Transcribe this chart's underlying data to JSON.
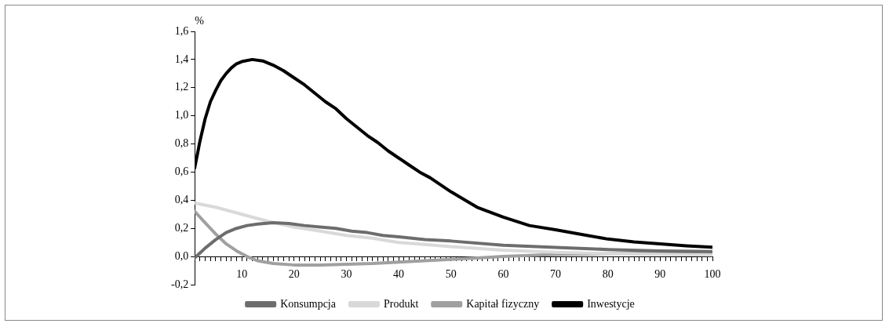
{
  "chart_data": {
    "type": "line",
    "ylabel": "%",
    "xlim": [
      1,
      100
    ],
    "xticks": [
      {
        "value": 1,
        "label": null
      },
      {
        "value": 2,
        "label": null
      },
      {
        "value": 3,
        "label": null
      },
      {
        "value": 4,
        "label": null
      },
      {
        "value": 5,
        "label": null
      },
      {
        "value": 6,
        "label": null
      },
      {
        "value": 7,
        "label": null
      },
      {
        "value": 8,
        "label": null
      },
      {
        "value": 9,
        "label": null
      },
      10,
      {
        "value": 11,
        "label": null
      },
      {
        "value": 12,
        "label": null
      },
      {
        "value": 13,
        "label": null
      },
      {
        "value": 14,
        "label": null
      },
      {
        "value": 15,
        "label": null
      },
      {
        "value": 16,
        "label": null
      },
      {
        "value": 17,
        "label": null
      },
      {
        "value": 18,
        "label": null
      },
      {
        "value": 19,
        "label": null
      },
      20,
      {
        "value": 21,
        "label": null
      },
      {
        "value": 22,
        "label": null
      },
      {
        "value": 23,
        "label": null
      },
      {
        "value": 24,
        "label": null
      },
      {
        "value": 25,
        "label": null
      },
      {
        "value": 26,
        "label": null
      },
      {
        "value": 27,
        "label": null
      },
      {
        "value": 28,
        "label": null
      },
      {
        "value": 29,
        "label": null
      },
      30,
      {
        "value": 31,
        "label": null
      },
      {
        "value": 32,
        "label": null
      },
      {
        "value": 33,
        "label": null
      },
      {
        "value": 34,
        "label": null
      },
      {
        "value": 35,
        "label": null
      },
      {
        "value": 36,
        "label": null
      },
      {
        "value": 37,
        "label": null
      },
      {
        "value": 38,
        "label": null
      },
      {
        "value": 39,
        "label": null
      },
      40,
      {
        "value": 41,
        "label": null
      },
      {
        "value": 42,
        "label": null
      },
      {
        "value": 43,
        "label": null
      },
      {
        "value": 44,
        "label": null
      },
      {
        "value": 45,
        "label": null
      },
      {
        "value": 46,
        "label": null
      },
      {
        "value": 47,
        "label": null
      },
      {
        "value": 48,
        "label": null
      },
      {
        "value": 49,
        "label": null
      },
      50,
      {
        "value": 51,
        "label": null
      },
      {
        "value": 52,
        "label": null
      },
      {
        "value": 53,
        "label": null
      },
      {
        "value": 54,
        "label": null
      },
      {
        "value": 55,
        "label": null
      },
      {
        "value": 56,
        "label": null
      },
      {
        "value": 57,
        "label": null
      },
      {
        "value": 58,
        "label": null
      },
      {
        "value": 59,
        "label": null
      },
      60,
      {
        "value": 61,
        "label": null
      },
      {
        "value": 62,
        "label": null
      },
      {
        "value": 63,
        "label": null
      },
      {
        "value": 64,
        "label": null
      },
      {
        "value": 65,
        "label": null
      },
      {
        "value": 66,
        "label": null
      },
      {
        "value": 67,
        "label": null
      },
      {
        "value": 68,
        "label": null
      },
      {
        "value": 69,
        "label": null
      },
      70,
      {
        "value": 71,
        "label": null
      },
      {
        "value": 72,
        "label": null
      },
      {
        "value": 73,
        "label": null
      },
      {
        "value": 74,
        "label": null
      },
      {
        "value": 75,
        "label": null
      },
      {
        "value": 76,
        "label": null
      },
      {
        "value": 77,
        "label": null
      },
      {
        "value": 78,
        "label": null
      },
      {
        "value": 79,
        "label": null
      },
      80,
      {
        "value": 81,
        "label": null
      },
      {
        "value": 82,
        "label": null
      },
      {
        "value": 83,
        "label": null
      },
      {
        "value": 84,
        "label": null
      },
      {
        "value": 85,
        "label": null
      },
      {
        "value": 86,
        "label": null
      },
      {
        "value": 87,
        "label": null
      },
      {
        "value": 88,
        "label": null
      },
      {
        "value": 89,
        "label": null
      },
      90,
      {
        "value": 91,
        "label": null
      },
      {
        "value": 92,
        "label": null
      },
      {
        "value": 93,
        "label": null
      },
      {
        "value": 94,
        "label": null
      },
      {
        "value": 95,
        "label": null
      },
      {
        "value": 96,
        "label": null
      },
      {
        "value": 97,
        "label": null
      },
      {
        "value": 98,
        "label": null
      },
      {
        "value": 99,
        "label": null
      },
      100
    ],
    "ylim": [
      -0.2,
      1.6
    ],
    "yticks": [
      {
        "value": -0.2,
        "label": "-0,2"
      },
      {
        "value": 0,
        "label": "0,0"
      },
      {
        "value": 0.2,
        "label": "0,2"
      },
      {
        "value": 0.4,
        "label": "0,4"
      },
      {
        "value": 0.6,
        "label": "0,6"
      },
      {
        "value": 0.8,
        "label": "0,8"
      },
      {
        "value": 1.0,
        "label": "1,0"
      },
      {
        "value": 1.2,
        "label": "1,2"
      },
      {
        "value": 1.4,
        "label": "1,4"
      },
      {
        "value": 1.6,
        "label": "1,6"
      }
    ],
    "grid": false,
    "legend": "bottom",
    "marker": "none",
    "line_style": "solid",
    "series": [
      {
        "name": "Konsumpcja",
        "color": "#6d6d6d",
        "x": [
          1,
          3,
          5,
          7,
          9,
          11,
          13,
          16,
          19,
          22,
          25,
          28,
          31,
          34,
          37,
          40,
          45,
          50,
          60,
          70,
          80,
          90,
          100
        ],
        "values": [
          -0.01,
          0.06,
          0.12,
          0.17,
          0.2,
          0.22,
          0.23,
          0.24,
          0.235,
          0.22,
          0.21,
          0.2,
          0.18,
          0.17,
          0.15,
          0.14,
          0.12,
          0.11,
          0.08,
          0.065,
          0.05,
          0.04,
          0.035
        ]
      },
      {
        "name": "Produkt",
        "color": "#d9d9d9",
        "x": [
          1,
          5,
          10,
          15,
          20,
          25,
          30,
          35,
          40,
          45,
          50,
          60,
          70,
          80,
          90,
          100
        ],
        "values": [
          0.38,
          0.35,
          0.3,
          0.25,
          0.21,
          0.18,
          0.15,
          0.13,
          0.1,
          0.085,
          0.07,
          0.045,
          0.03,
          0.02,
          0.015,
          0.01
        ]
      },
      {
        "name": "Kapitał fizyczny",
        "color": "#a0a0a0",
        "x": [
          1,
          3,
          5,
          7,
          9,
          11,
          13,
          16,
          20,
          25,
          30,
          35,
          40,
          45,
          50,
          55,
          60,
          70,
          80,
          90,
          100
        ],
        "values": [
          0.32,
          0.24,
          0.16,
          0.09,
          0.04,
          0.0,
          -0.03,
          -0.05,
          -0.06,
          -0.06,
          -0.055,
          -0.05,
          -0.04,
          -0.03,
          -0.02,
          -0.01,
          0.0,
          0.015,
          0.02,
          0.025,
          0.025
        ]
      },
      {
        "name": "Inwestycje",
        "color": "#000000",
        "x": [
          1,
          2,
          3,
          4,
          5,
          6,
          7,
          8,
          9,
          10,
          12,
          14,
          16,
          18,
          20,
          22,
          24,
          26,
          28,
          30,
          32,
          34,
          36,
          38,
          40,
          42,
          44,
          46,
          48,
          50,
          55,
          60,
          65,
          70,
          75,
          80,
          85,
          90,
          95,
          100
        ],
        "values": [
          0.63,
          0.82,
          0.98,
          1.1,
          1.18,
          1.25,
          1.3,
          1.34,
          1.37,
          1.385,
          1.4,
          1.39,
          1.36,
          1.32,
          1.27,
          1.22,
          1.16,
          1.1,
          1.05,
          0.98,
          0.92,
          0.86,
          0.81,
          0.75,
          0.7,
          0.65,
          0.6,
          0.56,
          0.51,
          0.46,
          0.35,
          0.28,
          0.22,
          0.19,
          0.157,
          0.124,
          0.104,
          0.09,
          0.076,
          0.066
        ]
      }
    ]
  }
}
